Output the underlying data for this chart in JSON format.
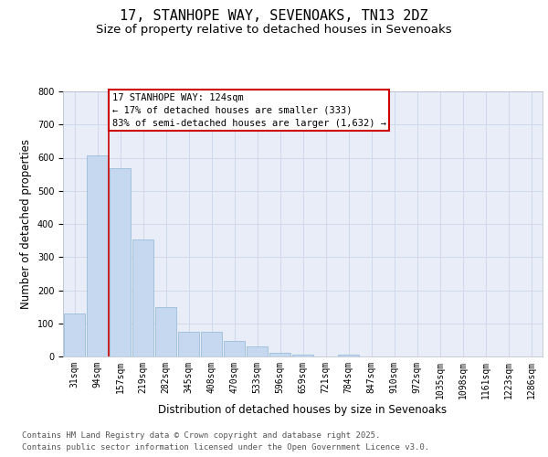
{
  "title1": "17, STANHOPE WAY, SEVENOAKS, TN13 2DZ",
  "title2": "Size of property relative to detached houses in Sevenoaks",
  "xlabel": "Distribution of detached houses by size in Sevenoaks",
  "ylabel": "Number of detached properties",
  "categories": [
    "31sqm",
    "94sqm",
    "157sqm",
    "219sqm",
    "282sqm",
    "345sqm",
    "408sqm",
    "470sqm",
    "533sqm",
    "596sqm",
    "659sqm",
    "721sqm",
    "784sqm",
    "847sqm",
    "910sqm",
    "972sqm",
    "1035sqm",
    "1098sqm",
    "1161sqm",
    "1223sqm",
    "1286sqm"
  ],
  "values": [
    130,
    608,
    568,
    352,
    150,
    75,
    75,
    47,
    30,
    12,
    5,
    0,
    5,
    0,
    0,
    0,
    0,
    0,
    0,
    0,
    0
  ],
  "bar_color": "#c5d8f0",
  "bar_edge_color": "#9bbdd8",
  "vline_color": "#cc0000",
  "vline_x": 1.5,
  "annotation_line1": "17 STANHOPE WAY: 124sqm",
  "annotation_line2": "← 17% of detached houses are smaller (333)",
  "annotation_line3": "83% of semi-detached houses are larger (1,632) →",
  "annotation_box_edgecolor": "#cc0000",
  "annotation_fill": "white",
  "ylim": [
    0,
    800
  ],
  "yticks": [
    0,
    100,
    200,
    300,
    400,
    500,
    600,
    700,
    800
  ],
  "grid_color": "#d0d9ec",
  "bg_color": "#e8edf8",
  "footer1": "Contains HM Land Registry data © Crown copyright and database right 2025.",
  "footer2": "Contains public sector information licensed under the Open Government Licence v3.0.",
  "title_fontsize": 11,
  "subtitle_fontsize": 9.5,
  "axis_label_fontsize": 8.5,
  "tick_fontsize": 7,
  "annotation_fontsize": 7.5,
  "footer_fontsize": 6.5
}
